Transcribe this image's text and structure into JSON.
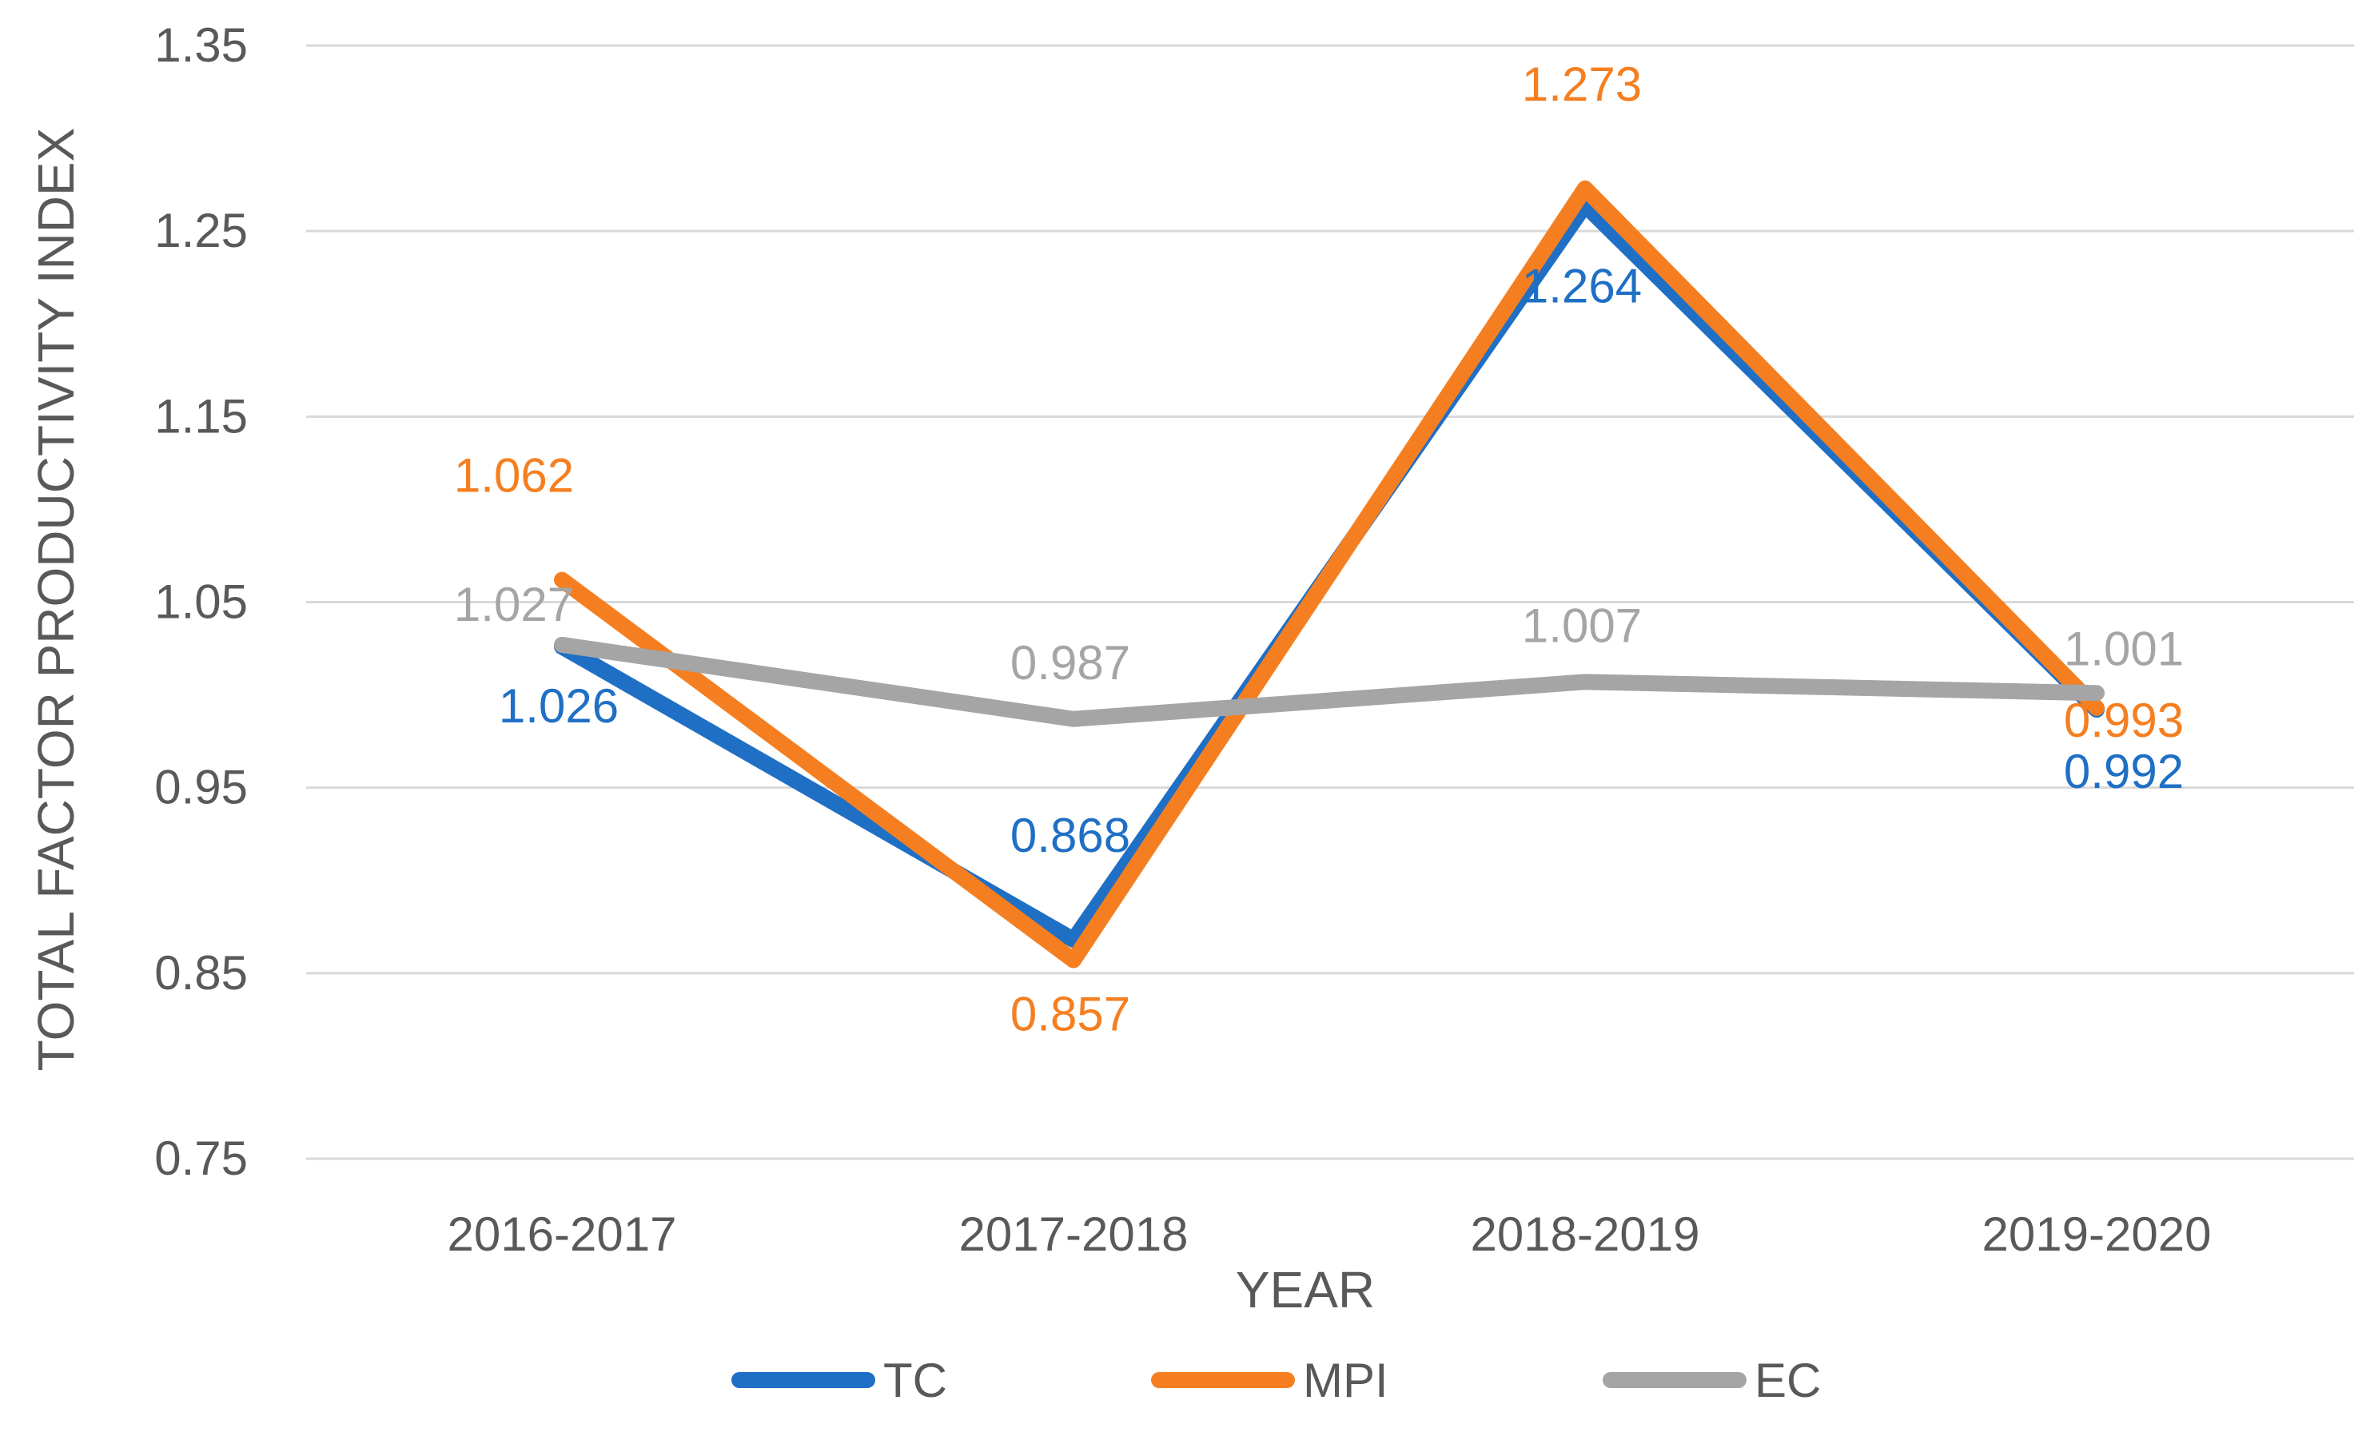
{
  "chart_data": {
    "type": "line",
    "title": "",
    "xlabel": "YEAR",
    "ylabel": "TOTAL FACTOR PRODUCTIVITY INDEX",
    "categories": [
      "2016-2017",
      "2017-2018",
      "2018-2019",
      "2019-2020"
    ],
    "ylim": [
      0.75,
      1.35
    ],
    "yticks": [
      0.75,
      0.85,
      0.95,
      1.05,
      1.15,
      1.25,
      1.35
    ],
    "ytick_labels": [
      "0.75",
      "0.85",
      "0.95",
      "1.05",
      "1.15",
      "1.25",
      "1.35"
    ],
    "grid": true,
    "legend_position": "bottom",
    "series": [
      {
        "name": "TC",
        "color": "#1F6FC5",
        "values": [
          1.026,
          0.868,
          1.264,
          0.992
        ],
        "labels": [
          "1.026",
          "0.868",
          "1.264",
          "0.992"
        ]
      },
      {
        "name": "MPI",
        "color": "#F57F20",
        "values": [
          1.062,
          0.857,
          1.273,
          0.993
        ],
        "labels": [
          "1.062",
          "0.857",
          "1.273",
          "0.993"
        ]
      },
      {
        "name": "EC",
        "color": "#A5A5A5",
        "values": [
          1.027,
          0.987,
          1.007,
          1.001
        ],
        "labels": [
          "1.027",
          "0.987",
          "1.007",
          "1.001"
        ]
      }
    ]
  }
}
